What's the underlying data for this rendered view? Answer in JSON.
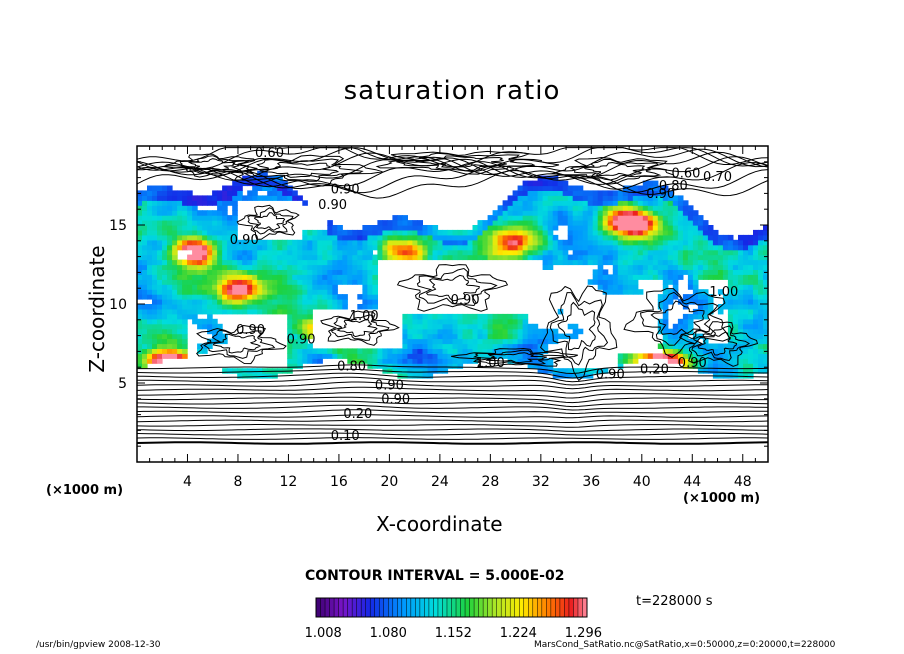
{
  "chart_data": {
    "type": "heatmap",
    "title": "saturation ratio",
    "xlabel": "X-coordinate",
    "ylabel": "Z-coordinate",
    "x_unit": "(×1000 m)",
    "y_unit": "(×1000 m)",
    "xlim": [
      0,
      50
    ],
    "ylim": [
      0,
      20
    ],
    "x_ticks": [
      "4",
      "8",
      "12",
      "16",
      "20",
      "24",
      "28",
      "32",
      "36",
      "40",
      "44",
      "48"
    ],
    "y_ticks": [
      "5",
      "10",
      "15"
    ],
    "contour_interval": "CONTOUR INTERVAL = 5.000E-02",
    "time": "t=228000 s",
    "colorbar_ticks": [
      "1.008",
      "1.080",
      "1.152",
      "1.224",
      "1.296"
    ],
    "colorbar_range": [
      1.0,
      1.3
    ],
    "contour_labels": [
      {
        "text": "0.10",
        "x": 16.5,
        "y": 1.4
      },
      {
        "text": "0.20",
        "x": 17.5,
        "y": 2.8
      },
      {
        "text": "0.90",
        "x": 20.5,
        "y": 3.7
      },
      {
        "text": "0.80",
        "x": 17.0,
        "y": 5.8
      },
      {
        "text": "0.90",
        "x": 20.0,
        "y": 4.6
      },
      {
        "text": "1.00",
        "x": 28.0,
        "y": 6.0
      },
      {
        "text": "0.90",
        "x": 9.0,
        "y": 8.1
      },
      {
        "text": "0.90",
        "x": 13.0,
        "y": 7.5
      },
      {
        "text": "1.00",
        "x": 18.0,
        "y": 9.0
      },
      {
        "text": "0.90",
        "x": 26.0,
        "y": 10.0
      },
      {
        "text": "0.90",
        "x": 8.5,
        "y": 13.8
      },
      {
        "text": "0.90",
        "x": 16.5,
        "y": 17.0
      },
      {
        "text": "0.90",
        "x": 15.5,
        "y": 16.0
      },
      {
        "text": "0.60",
        "x": 10.5,
        "y": 19.3
      },
      {
        "text": "0.90",
        "x": 41.5,
        "y": 16.7
      },
      {
        "text": "0.60",
        "x": 43.5,
        "y": 18.0
      },
      {
        "text": "0.70",
        "x": 46.0,
        "y": 17.8
      },
      {
        "text": "0.80",
        "x": 42.5,
        "y": 17.2
      },
      {
        "text": "0.90",
        "x": 37.5,
        "y": 5.3
      },
      {
        "text": "0.90",
        "x": 44.0,
        "y": 6.0
      },
      {
        "text": "1.00",
        "x": 46.5,
        "y": 10.5
      },
      {
        "text": "0.20",
        "x": 41.0,
        "y": 5.6
      }
    ],
    "high_saturation_regions": [
      {
        "x": 4.5,
        "y": 13.3,
        "value": 1.3
      },
      {
        "x": 25.5,
        "y": 15.3,
        "value": 1.3
      },
      {
        "x": 39.0,
        "y": 15.2,
        "value": 1.3
      },
      {
        "x": 21.0,
        "y": 13.3,
        "value": 1.2
      },
      {
        "x": 42.0,
        "y": 6.2,
        "value": 1.3
      },
      {
        "x": 15.0,
        "y": 8.3,
        "value": 1.25
      },
      {
        "x": 2.5,
        "y": 6.3,
        "value": 1.25
      },
      {
        "x": 30.0,
        "y": 14.0,
        "value": 1.2
      },
      {
        "x": 8.0,
        "y": 11.0,
        "value": 1.2
      }
    ]
  },
  "labels": {
    "x_unit_left": "(×1000 m)",
    "x_unit_right": "(×1000 m)",
    "footer_left": "/usr/bin/gpview   2008-12-30",
    "footer_right": "MarsCond_SatRatio.nc@SatRatio,x=0:50000,z=0:20000,t=228000"
  }
}
